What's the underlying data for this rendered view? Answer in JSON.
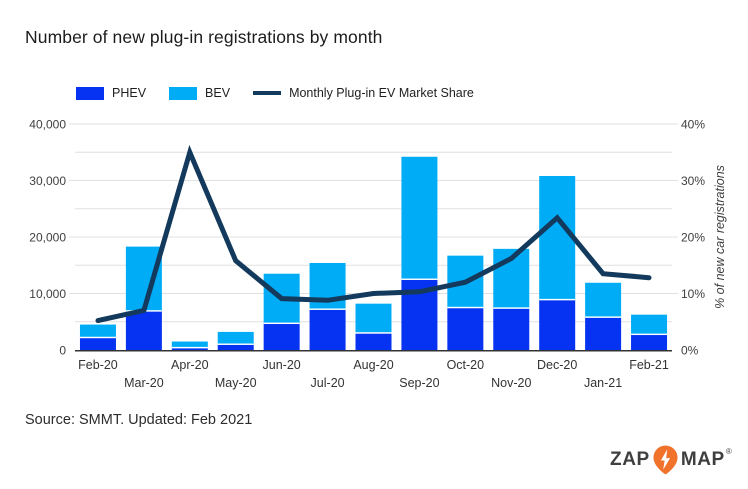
{
  "header": {
    "title": "Number of new plug-in registrations by month"
  },
  "legend": {
    "phev_label": "PHEV",
    "bev_label": "BEV",
    "line_label": "Monthly Plug-in EV Market Share"
  },
  "colors": {
    "phev": "#0533f1",
    "bev": "#00acf6",
    "line": "#133a5c",
    "grid": "#e0e0e0",
    "axis_text": "#404040",
    "axis_line": "#333333",
    "logo_orange": "#f0722b",
    "logo_text": "#3f3f3f"
  },
  "chart_data": {
    "type": "bar",
    "subtype": "stacked-bars-with-line",
    "title": "Number of new plug-in registrations by month",
    "categories": [
      "Feb-20",
      "Mar-20",
      "Apr-20",
      "May-20",
      "Jun-20",
      "Jul-20",
      "Aug-20",
      "Sep-20",
      "Oct-20",
      "Nov-20",
      "Dec-20",
      "Jan-21",
      "Feb-21"
    ],
    "series": [
      {
        "name": "PHEV",
        "type": "bar",
        "axis": "left",
        "values": [
          2100,
          6800,
          300,
          900,
          4600,
          7100,
          2900,
          12400,
          7400,
          7300,
          8800,
          5700,
          2650
        ]
      },
      {
        "name": "BEV",
        "type": "bar",
        "axis": "left",
        "values": [
          2400,
          11500,
          1200,
          2300,
          8900,
          8300,
          5300,
          21800,
          9300,
          10600,
          22000,
          6200,
          3600
        ]
      },
      {
        "name": "Monthly Plug-in EV Market Share",
        "type": "line",
        "axis": "right",
        "values": [
          5.2,
          7,
          35,
          15.8,
          9.1,
          8.8,
          10,
          10.3,
          12,
          16.2,
          23.4,
          13.5,
          12.8
        ]
      }
    ],
    "left_axis": {
      "max": 40000,
      "grid_step": 5000,
      "label_step": 10000,
      "tick_labels": [
        "0",
        "10,000",
        "20,000",
        "30,000",
        "40,000"
      ]
    },
    "right_axis": {
      "max": 40,
      "label_step": 10,
      "tick_labels": [
        "0%",
        "10%",
        "20%",
        "30%",
        "40%"
      ],
      "axis_label": "% of new car registrations"
    },
    "grid": true,
    "legend_position": "top"
  },
  "footer": {
    "source": "Source: SMMT. Updated: Feb 2021"
  },
  "logo": {
    "zap": "ZAP",
    "map": "MAP",
    "reg": "®"
  }
}
